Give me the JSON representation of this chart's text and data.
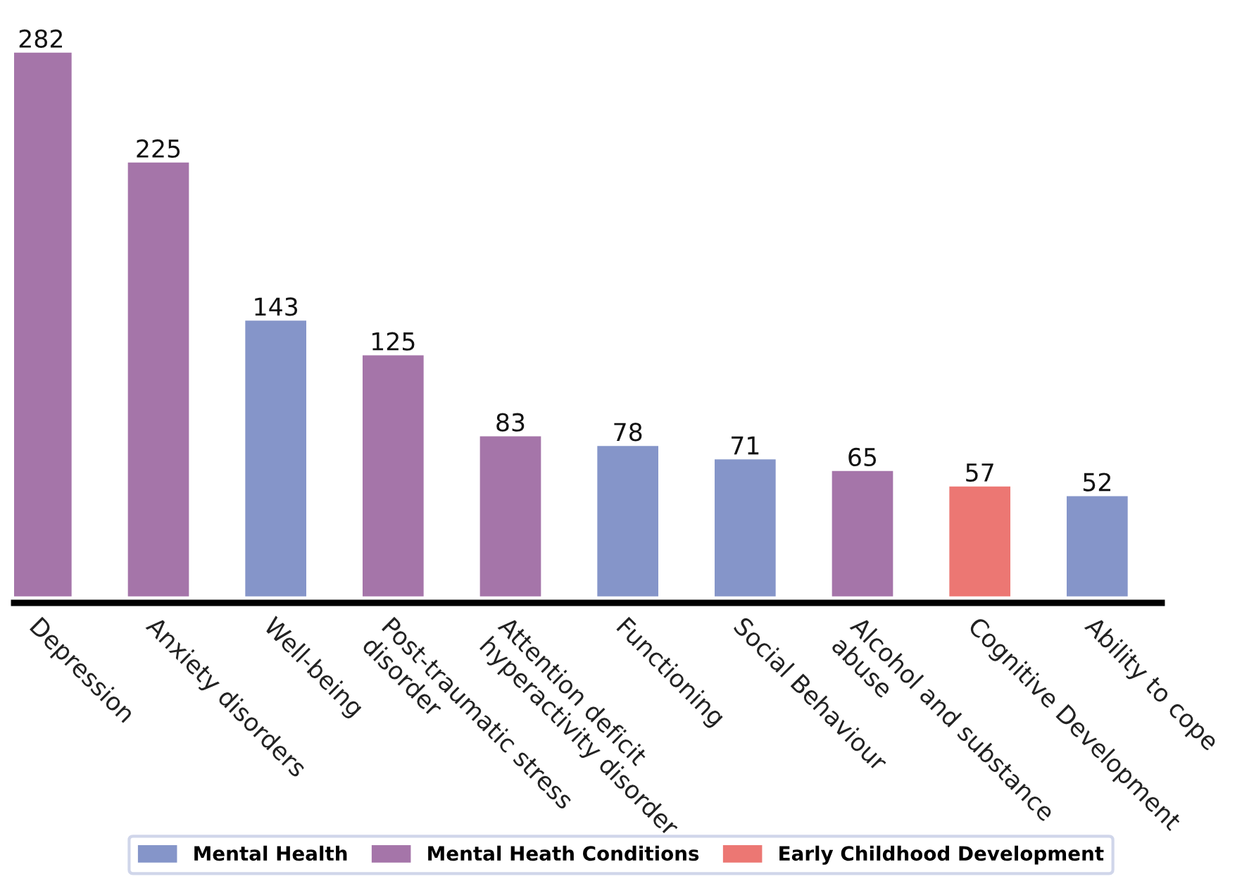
{
  "chart_data": {
    "type": "bar",
    "stacked": true,
    "data_labels": true,
    "legend": "bottom",
    "tick_labels": "x",
    "categories": [
      "Depression",
      "Anxiety disorders",
      "Well-being",
      "Post-traumatic stress\ndisorder",
      "Attention deficit\nhyperactivity disorder",
      "Functioning",
      "Social Behaviour",
      "Alcohol and substance\nabuse",
      "Cognitive Development",
      "Ability to cope"
    ],
    "series": [
      {
        "name": "Mental Health",
        "color": "#8595c9",
        "values": [
          null,
          null,
          143,
          null,
          null,
          78,
          71,
          null,
          null,
          52
        ]
      },
      {
        "name": "Mental Heath Conditions",
        "color": "#a575a9",
        "values": [
          282,
          225,
          null,
          125,
          83,
          null,
          null,
          65,
          null,
          null
        ]
      },
      {
        "name": "Early Childhood Development",
        "color": "#ec7773",
        "values": [
          null,
          null,
          null,
          null,
          null,
          null,
          null,
          null,
          57,
          null
        ]
      }
    ]
  }
}
